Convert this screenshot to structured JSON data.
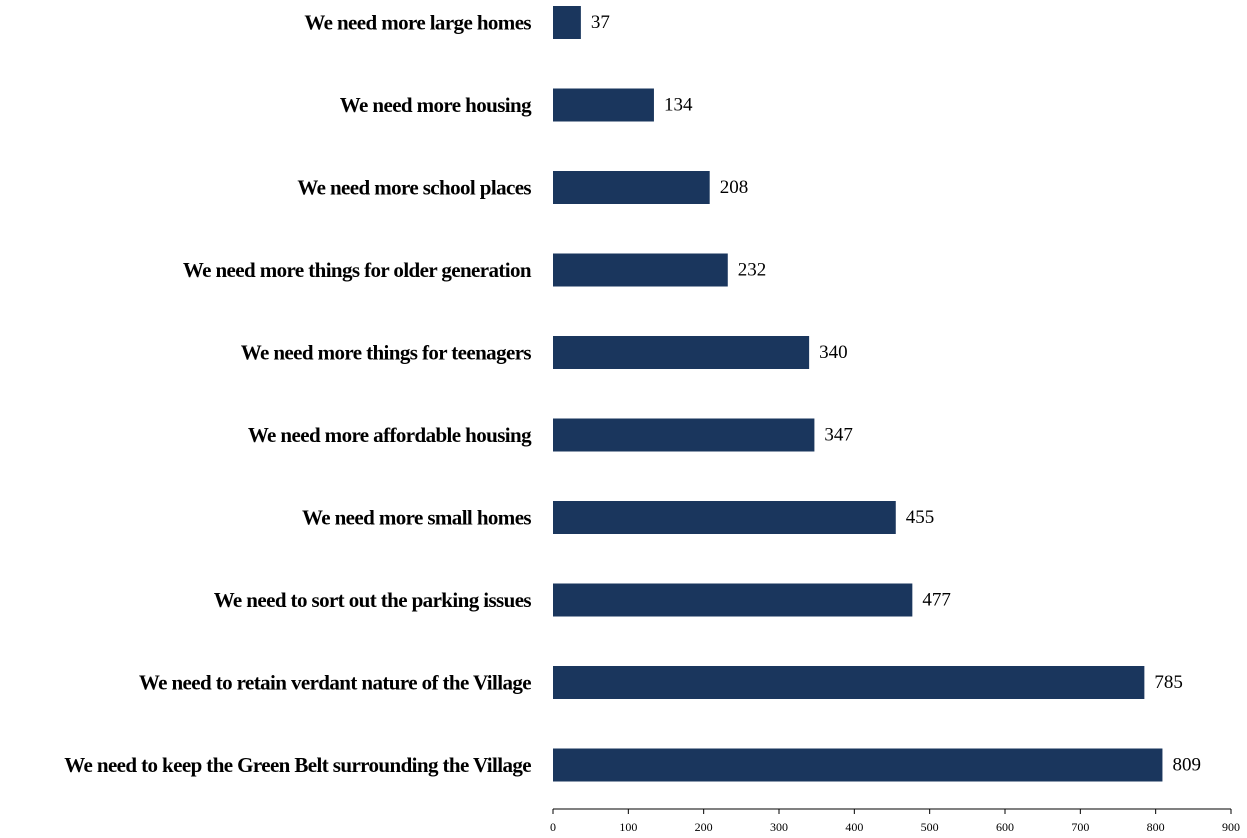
{
  "chart_data": {
    "type": "bar",
    "orientation": "horizontal",
    "categories": [
      "We need more large homes",
      "We need more housing",
      "We need more school places",
      "We need more things for older generation",
      "We need more things for teenagers",
      "We need more affordable housing",
      "We need more small homes",
      "We need to sort out the parking issues",
      "We need to retain verdant nature of the Village",
      "We need to keep the Green Belt surrounding the Village"
    ],
    "values": [
      37,
      134,
      208,
      232,
      340,
      347,
      455,
      477,
      785,
      809
    ],
    "xlim": [
      0,
      900
    ],
    "xticks": [
      "0",
      "100",
      "200",
      "300",
      "400",
      "500",
      "600",
      "700",
      "800",
      "900"
    ],
    "bar_color": "#1a365d",
    "grid": false,
    "legend": "none"
  }
}
